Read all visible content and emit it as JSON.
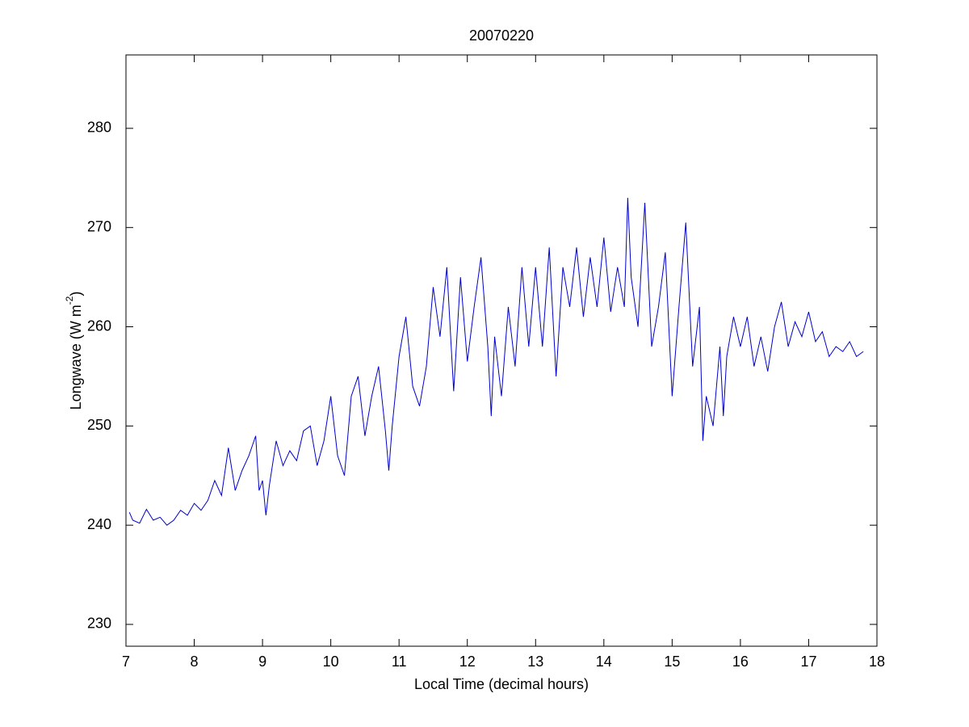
{
  "chart_data": {
    "type": "line",
    "title": "20070220",
    "xlabel": "Local Time (decimal hours)",
    "ylabel": {
      "text": "Longwave (W m",
      "superscript": "-2",
      "suffix": ")"
    },
    "xlim": [
      7,
      18
    ],
    "ylim": [
      227.8,
      287.4
    ],
    "xticks": [
      7,
      8,
      9,
      10,
      11,
      12,
      13,
      14,
      15,
      16,
      17,
      18
    ],
    "yticks": [
      230,
      240,
      250,
      260,
      270,
      280
    ],
    "series": [
      {
        "color": "#0000cc",
        "x": [
          7.05,
          7.1,
          7.2,
          7.3,
          7.4,
          7.5,
          7.6,
          7.7,
          7.8,
          7.9,
          8.0,
          8.1,
          8.2,
          8.3,
          8.4,
          8.5,
          8.6,
          8.7,
          8.8,
          8.9,
          8.95,
          9.0,
          9.05,
          9.1,
          9.2,
          9.3,
          9.4,
          9.5,
          9.6,
          9.7,
          9.8,
          9.9,
          10.0,
          10.1,
          10.2,
          10.3,
          10.4,
          10.5,
          10.6,
          10.7,
          10.8,
          10.85,
          10.9,
          11.0,
          11.1,
          11.2,
          11.3,
          11.4,
          11.5,
          11.6,
          11.7,
          11.8,
          11.9,
          12.0,
          12.1,
          12.2,
          12.3,
          12.35,
          12.4,
          12.5,
          12.6,
          12.7,
          12.8,
          12.9,
          13.0,
          13.1,
          13.2,
          13.3,
          13.4,
          13.5,
          13.6,
          13.7,
          13.8,
          13.9,
          14.0,
          14.1,
          14.2,
          14.3,
          14.35,
          14.4,
          14.5,
          14.6,
          14.7,
          14.8,
          14.9,
          15.0,
          15.1,
          15.2,
          15.3,
          15.4,
          15.45,
          15.5,
          15.6,
          15.7,
          15.75,
          15.8,
          15.9,
          16.0,
          16.1,
          16.2,
          16.3,
          16.4,
          16.5,
          16.6,
          16.7,
          16.8,
          16.9,
          17.0,
          17.1,
          17.2,
          17.3,
          17.4,
          17.5,
          17.6,
          17.7,
          17.8
        ],
        "values": [
          241.3,
          240.5,
          240.2,
          241.6,
          240.5,
          240.8,
          240.0,
          240.5,
          241.5,
          241.0,
          242.2,
          241.5,
          242.5,
          244.5,
          243.0,
          247.8,
          243.5,
          245.5,
          247.0,
          249.0,
          243.5,
          244.5,
          241.0,
          244.0,
          248.5,
          246.0,
          247.5,
          246.5,
          249.5,
          250.0,
          246.0,
          248.5,
          253.0,
          247.0,
          245.0,
          253.0,
          255.0,
          249.0,
          253.0,
          256.0,
          249.5,
          245.5,
          250.0,
          257.0,
          261.0,
          254.0,
          252.0,
          256.0,
          264.0,
          259.0,
          266.0,
          253.5,
          265.0,
          256.5,
          262.0,
          267.0,
          258.0,
          251.0,
          259.0,
          253.0,
          262.0,
          256.0,
          266.0,
          258.0,
          266.0,
          258.0,
          268.0,
          255.0,
          266.0,
          262.0,
          268.0,
          261.0,
          267.0,
          262.0,
          269.0,
          261.5,
          266.0,
          262.0,
          273.0,
          265.0,
          260.0,
          272.5,
          258.0,
          262.0,
          267.5,
          253.0,
          262.0,
          270.5,
          256.0,
          262.0,
          248.5,
          253.0,
          250.0,
          258.0,
          251.0,
          257.0,
          261.0,
          258.0,
          261.0,
          256.0,
          259.0,
          255.5,
          260.0,
          262.5,
          258.0,
          260.5,
          259.0,
          261.5,
          258.5,
          259.5,
          257.0,
          258.0,
          257.5,
          258.5,
          257.0,
          257.5
        ]
      }
    ]
  }
}
